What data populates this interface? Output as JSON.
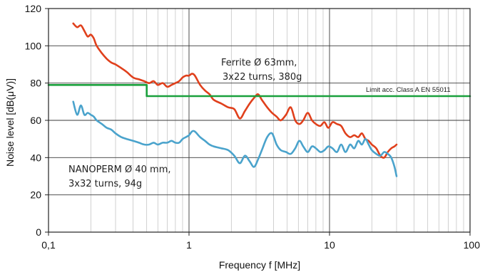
{
  "chart_data": {
    "type": "line",
    "title": "",
    "xlabel": "Frequency  f [MHz]",
    "ylabel": "Noise level [dB(μV)]",
    "x_scale": "log",
    "xlim": [
      0.1,
      100
    ],
    "ylim": [
      0,
      120
    ],
    "x_ticks": [
      0.1,
      1,
      10,
      100
    ],
    "x_tick_labels": [
      "0,1",
      "1",
      "10",
      "100"
    ],
    "y_ticks": [
      0,
      20,
      40,
      60,
      80,
      100,
      120
    ],
    "y_tick_labels": [
      "0",
      "20",
      "40",
      "60",
      "80",
      "100",
      "120"
    ],
    "grid": true,
    "series": [
      {
        "name": "Ferrite Ø 63mm, 3x22 turns, 380g",
        "color": "#e0401c",
        "x": [
          0.15,
          0.16,
          0.17,
          0.18,
          0.19,
          0.2,
          0.21,
          0.22,
          0.24,
          0.26,
          0.28,
          0.3,
          0.33,
          0.36,
          0.4,
          0.44,
          0.48,
          0.52,
          0.56,
          0.6,
          0.65,
          0.7,
          0.75,
          0.8,
          0.85,
          0.9,
          0.95,
          1.0,
          1.05,
          1.1,
          1.2,
          1.3,
          1.4,
          1.5,
          1.7,
          1.9,
          2.1,
          2.3,
          2.5,
          2.7,
          2.9,
          3.1,
          3.3,
          3.6,
          3.9,
          4.2,
          4.5,
          4.9,
          5.3,
          5.7,
          6.1,
          6.5,
          7.0,
          7.5,
          8.0,
          8.6,
          9.2,
          9.8,
          10.5,
          11.3,
          12.1,
          13.0,
          14.0,
          15.0,
          16.0,
          17.0,
          18.0,
          19.0,
          20.0,
          21.5,
          23.0,
          24.5,
          26.0,
          27.5,
          29.0,
          30.0
        ],
        "y": [
          112,
          110,
          111,
          108,
          105,
          106,
          104,
          100,
          96,
          93,
          91,
          90,
          88,
          86,
          83,
          82,
          81,
          80,
          81,
          79,
          80,
          78,
          79,
          80,
          81,
          83,
          84,
          84,
          85,
          84,
          79,
          76,
          74,
          71,
          69,
          67,
          66,
          61,
          65,
          69,
          72,
          74,
          71,
          67,
          64,
          62,
          60,
          63,
          67,
          60,
          58,
          60,
          64,
          60,
          58,
          57,
          59,
          56,
          59,
          58,
          57,
          53,
          51,
          52,
          51,
          53,
          50,
          49,
          47,
          45,
          41,
          40,
          43,
          45,
          46,
          47
        ]
      },
      {
        "name": "NANOPERM Ø 40 mm, 3x32 turns, 94g",
        "color": "#4aa3cc",
        "x": [
          0.15,
          0.16,
          0.17,
          0.18,
          0.19,
          0.2,
          0.21,
          0.22,
          0.24,
          0.26,
          0.28,
          0.3,
          0.33,
          0.36,
          0.4,
          0.44,
          0.48,
          0.52,
          0.56,
          0.6,
          0.65,
          0.7,
          0.75,
          0.8,
          0.85,
          0.9,
          0.95,
          1.0,
          1.05,
          1.1,
          1.2,
          1.3,
          1.4,
          1.5,
          1.7,
          1.9,
          2.1,
          2.3,
          2.5,
          2.7,
          2.9,
          3.1,
          3.3,
          3.6,
          3.9,
          4.2,
          4.5,
          4.9,
          5.3,
          5.7,
          6.1,
          6.5,
          7.0,
          7.5,
          8.0,
          8.6,
          9.2,
          9.8,
          10.5,
          11.3,
          12.1,
          13.0,
          14.0,
          15.0,
          16.0,
          17.0,
          18.0,
          19.0,
          20.0,
          21.5,
          23.0,
          24.5,
          26.0,
          27.5,
          29.0,
          30.0
        ],
        "y": [
          70,
          63,
          68,
          63,
          64,
          63,
          62,
          60,
          58,
          56,
          55,
          53,
          51,
          50,
          49,
          48,
          47,
          47,
          48,
          47,
          48,
          48,
          49,
          48,
          48,
          50,
          51,
          52,
          54,
          54,
          51,
          49,
          47,
          46,
          45,
          44,
          41,
          37,
          41,
          38,
          35,
          39,
          44,
          51,
          53,
          47,
          44,
          43,
          42,
          45,
          49,
          46,
          43,
          46,
          45,
          43,
          44,
          46,
          45,
          43,
          47,
          43,
          47,
          45,
          49,
          47,
          50,
          47,
          44,
          42,
          41,
          43,
          42,
          40,
          35,
          30
        ]
      },
      {
        "name": "Limit acc. Class A  EN 55011",
        "color": "#1aa03c",
        "x": [
          0.1,
          0.5,
          0.5,
          100
        ],
        "y": [
          79,
          79,
          73,
          73
        ]
      }
    ],
    "annotations": [
      "Ferrite  Ø 63mm,",
      "3x22 turns, 380g",
      "NANOPERM Ø 40 mm,",
      "3x32 turns, 94g",
      "Limit acc. Class A  EN 55011"
    ]
  }
}
